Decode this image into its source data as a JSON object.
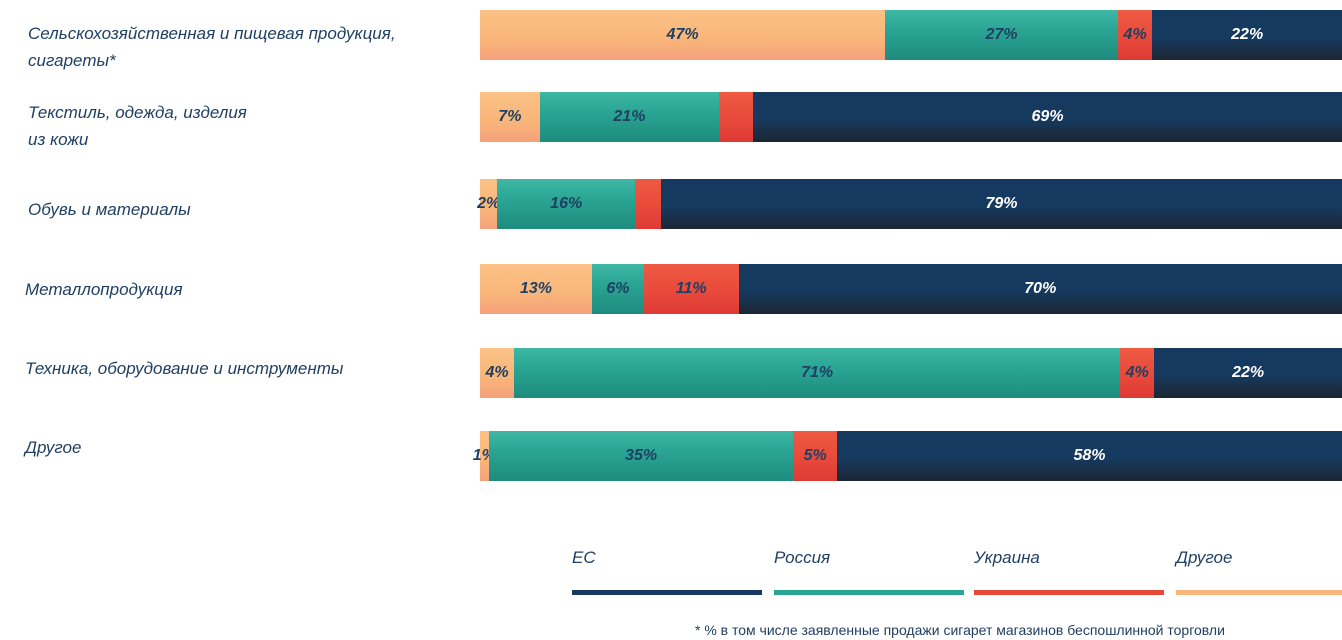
{
  "chart_data": {
    "type": "bar",
    "stacked": true,
    "orientation": "horizontal",
    "normalized_percent": true,
    "categories": [
      "Сельскохозяйственная и пищевая продукция, сигареты*",
      "Текстиль, одежда, изделия из кожи",
      "Обувь и материалы",
      "Металлопродукция",
      "Техника, оборудование и инструменты",
      "Другое"
    ],
    "series": [
      {
        "name": "Другое",
        "color": "#f9b57a",
        "text_color": "#1f3f63",
        "values": [
          47,
          7,
          2,
          13,
          4,
          1
        ],
        "labels": [
          "47%",
          "7%",
          "2%",
          "13%",
          "4%",
          "1%"
        ]
      },
      {
        "name": "Россия",
        "color": "#2aa594",
        "text_color": "#1f3f63",
        "values": [
          27,
          21,
          16,
          6,
          71,
          35
        ],
        "labels": [
          "27%",
          "21%",
          "16%",
          "6%",
          "71%",
          "35%"
        ]
      },
      {
        "name": "Украина",
        "color": "#e8483a",
        "text_color": "#1f3f63",
        "values": [
          4,
          4,
          3,
          11,
          4,
          5
        ],
        "labels": [
          "4%",
          "",
          "",
          "11%",
          "4%",
          "5%"
        ]
      },
      {
        "name": "ЕС",
        "color": "#163a5f",
        "text_color": "#ffffff",
        "values": [
          22,
          69,
          79,
          70,
          22,
          58
        ],
        "labels": [
          "22%",
          "69%",
          "79%",
          "70%",
          "22%",
          "58%"
        ]
      }
    ],
    "legend": {
      "placement": "bottom",
      "order": [
        "ЕС",
        "Россия",
        "Украина",
        "Другое"
      ]
    },
    "footnote": "* % в том числе заявленные продажи сигарет магазинов беспошлинной торговли"
  },
  "labels": {
    "cat_lines": [
      [
        "Сельскохозяйственная и пищевая продукция,",
        "сигареты*"
      ],
      [
        "Текстиль, одежда, изделия",
        "из кожи"
      ],
      [
        "Обувь и материалы"
      ],
      [
        "Металлопродукция"
      ],
      [
        "Техника, оборудование и инструменты"
      ],
      [
        "Другое"
      ]
    ]
  }
}
